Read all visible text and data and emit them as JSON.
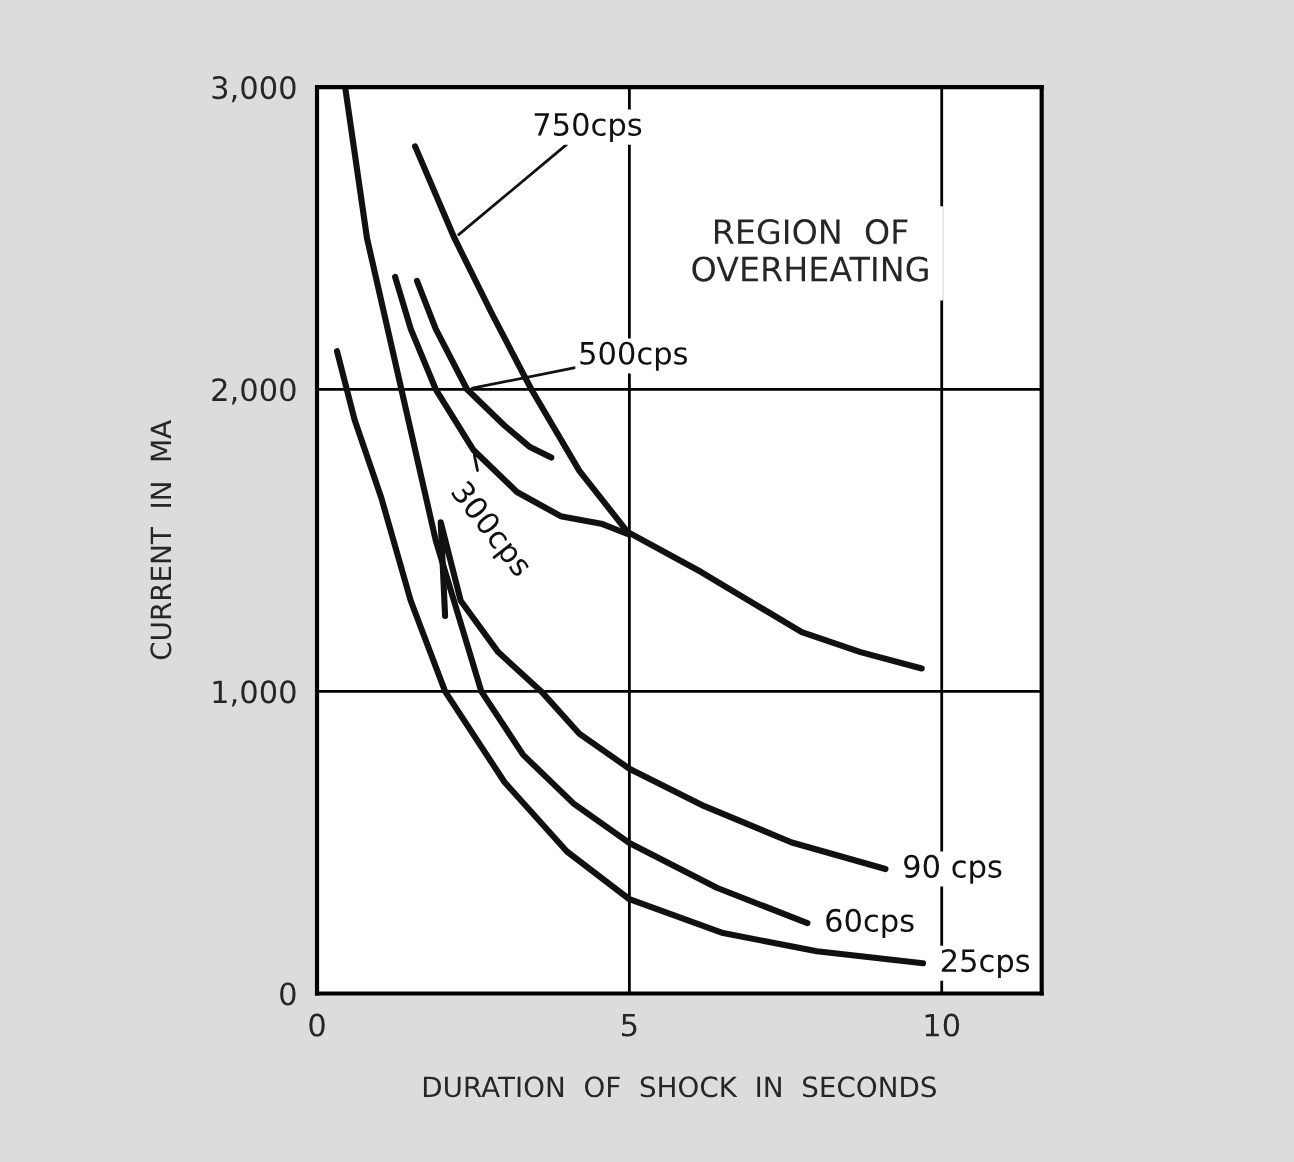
{
  "chart_data": {
    "type": "line",
    "xlabel": "DURATION  OF  SHOCK  IN  SECONDS",
    "ylabel": "CURRENT  IN  MA",
    "xlim": [
      0,
      11.6
    ],
    "ylim": [
      0,
      3000
    ],
    "xticks": [
      0,
      5,
      10
    ],
    "yticks": [
      0,
      {
        "value": 1000,
        "label": "1,000"
      },
      {
        "value": 2000,
        "label": "2,000"
      },
      {
        "value": 3000,
        "label": "3,000"
      }
    ],
    "grid": true,
    "marker": "none",
    "line_style": "solid",
    "series": [
      {
        "name": "750cps",
        "color": "#111111",
        "x": [
          1.57,
          2.2,
          2.8,
          3.43,
          4.2,
          4.97,
          6.15,
          7.0,
          7.76,
          8.7,
          9.68
        ],
        "values": [
          2804,
          2500,
          2250,
          2000,
          1730,
          1528,
          1395,
          1290,
          1196,
          1130,
          1076
        ]
      },
      {
        "name": "500cps",
        "color": "#111111",
        "x": [
          1.6,
          1.9,
          2.4,
          3.0,
          3.4,
          3.75
        ],
        "values": [
          2359,
          2200,
          2000,
          1880,
          1810,
          1774
        ]
      },
      {
        "name": "300cps",
        "color": "#111111",
        "x": [
          1.25,
          1.5,
          1.9,
          2.5,
          3.2,
          3.9,
          4.55,
          4.97
        ],
        "values": [
          2372,
          2200,
          2000,
          1800,
          1660,
          1580,
          1555,
          1521
        ]
      },
      {
        "name": "90 cps",
        "color": "#111111",
        "x": [
          2.05,
          1.98,
          2.3,
          2.9,
          3.59,
          4.2,
          5.0,
          6.2,
          7.6,
          9.1
        ],
        "values": [
          1250,
          1560,
          1300,
          1130,
          1000,
          860,
          744,
          620,
          500,
          412
        ]
      },
      {
        "name": "60cps",
        "color": "#111111",
        "x": [
          0.45,
          0.8,
          1.35,
          1.9,
          2.63,
          3.3,
          4.1,
          5.0,
          6.4,
          7.85
        ],
        "values": [
          3000,
          2500,
          2000,
          1500,
          1000,
          790,
          630,
          498,
          350,
          233
        ]
      },
      {
        "name": "25cps",
        "color": "#111111",
        "x": [
          0.32,
          0.6,
          1.03,
          1.5,
          2.05,
          3.0,
          4.0,
          5.0,
          6.5,
          8.0,
          9.7
        ],
        "values": [
          2126,
          1900,
          1640,
          1300,
          1000,
          700,
          470,
          312,
          200,
          140,
          100
        ]
      }
    ],
    "annotations": [
      "REGION  OF\nOVERHEATING"
    ]
  }
}
